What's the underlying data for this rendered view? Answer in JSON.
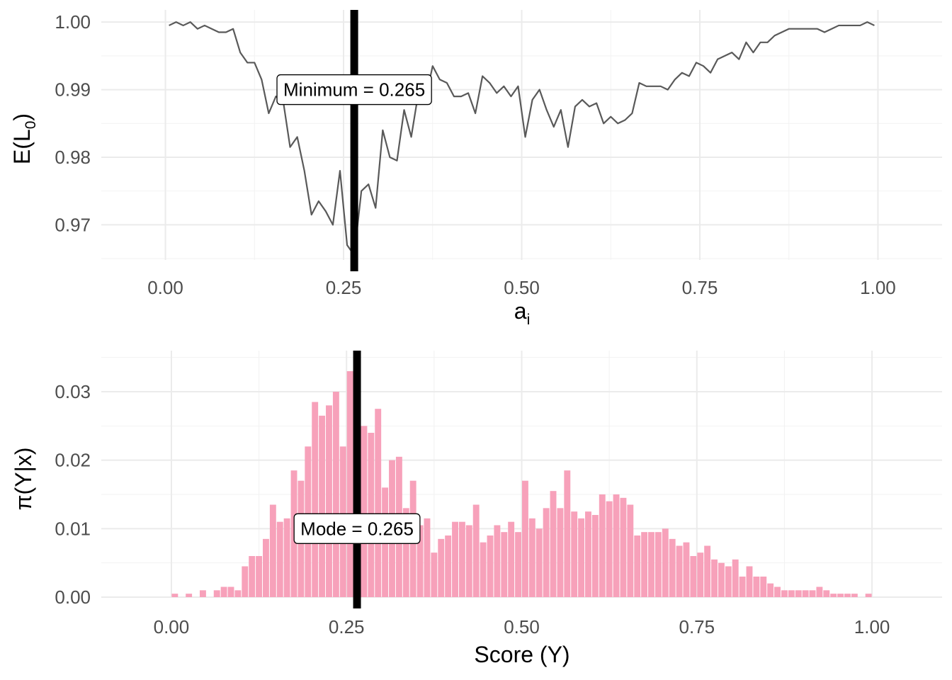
{
  "chart_data": [
    {
      "type": "line",
      "xlabel": {
        "base": "a",
        "sub": "i"
      },
      "ylabel": {
        "base": "E(L",
        "sub": "0",
        "close": ")"
      },
      "xlim": [
        -0.09,
        1.09
      ],
      "ylim": [
        0.9648,
        1.0018
      ],
      "x_ticks": [
        0.0,
        0.25,
        0.5,
        0.75,
        1.0
      ],
      "x_tick_labels": [
        "0.00",
        "0.25",
        "0.50",
        "0.75",
        "1.00"
      ],
      "y_ticks": [
        0.97,
        0.98,
        0.99,
        1.0
      ],
      "y_tick_labels": [
        "0.97",
        "0.98",
        "0.99",
        "1.00"
      ],
      "grid": true,
      "line_color": "#595959",
      "vline": {
        "x": 0.265,
        "color": "#000000"
      },
      "annotation": {
        "text": "Minimum = 0.265",
        "x": 0.265,
        "y": 0.99
      },
      "series": [
        {
          "x": [
            0.005,
            0.015,
            0.025,
            0.035,
            0.045,
            0.055,
            0.065,
            0.075,
            0.085,
            0.095,
            0.105,
            0.115,
            0.125,
            0.135,
            0.145,
            0.155,
            0.165,
            0.175,
            0.185,
            0.195,
            0.205,
            0.215,
            0.225,
            0.235,
            0.245,
            0.255,
            0.265,
            0.275,
            0.285,
            0.295,
            0.305,
            0.315,
            0.325,
            0.335,
            0.345,
            0.355,
            0.365,
            0.375,
            0.385,
            0.395,
            0.405,
            0.415,
            0.425,
            0.435,
            0.445,
            0.455,
            0.465,
            0.475,
            0.485,
            0.495,
            0.505,
            0.515,
            0.525,
            0.535,
            0.545,
            0.555,
            0.565,
            0.575,
            0.585,
            0.595,
            0.605,
            0.615,
            0.625,
            0.635,
            0.645,
            0.655,
            0.665,
            0.675,
            0.685,
            0.695,
            0.705,
            0.715,
            0.725,
            0.735,
            0.745,
            0.755,
            0.765,
            0.775,
            0.785,
            0.795,
            0.805,
            0.815,
            0.825,
            0.835,
            0.845,
            0.855,
            0.865,
            0.875,
            0.885,
            0.895,
            0.905,
            0.915,
            0.925,
            0.935,
            0.945,
            0.955,
            0.965,
            0.975,
            0.985,
            0.995
          ],
          "y": [
            0.9995,
            1.0,
            0.9995,
            1.0,
            0.999,
            0.9995,
            0.999,
            0.9985,
            0.9985,
            0.999,
            0.9955,
            0.994,
            0.994,
            0.9915,
            0.9865,
            0.989,
            0.9885,
            0.9815,
            0.983,
            0.978,
            0.9715,
            0.9735,
            0.972,
            0.97,
            0.978,
            0.967,
            0.9655,
            0.975,
            0.976,
            0.9725,
            0.984,
            0.98,
            0.9795,
            0.987,
            0.983,
            0.9895,
            0.9885,
            0.9935,
            0.9915,
            0.991,
            0.989,
            0.989,
            0.9895,
            0.9865,
            0.992,
            0.991,
            0.9895,
            0.9905,
            0.989,
            0.9905,
            0.983,
            0.9885,
            0.99,
            0.987,
            0.9845,
            0.987,
            0.9815,
            0.9875,
            0.9885,
            0.9875,
            0.988,
            0.985,
            0.986,
            0.985,
            0.9855,
            0.9865,
            0.991,
            0.9905,
            0.9905,
            0.9905,
            0.99,
            0.9915,
            0.9925,
            0.992,
            0.994,
            0.9935,
            0.9925,
            0.9945,
            0.995,
            0.9955,
            0.9945,
            0.997,
            0.9955,
            0.997,
            0.997,
            0.998,
            0.9985,
            0.999,
            0.999,
            0.999,
            0.999,
            0.999,
            0.9985,
            0.999,
            0.9995,
            0.9995,
            0.9995,
            0.9995,
            1.0,
            0.9995
          ]
        }
      ]
    },
    {
      "type": "bar",
      "xlabel": "Score (Y)",
      "ylabel": "π(Y|x)",
      "xlim": [
        -0.1,
        1.1
      ],
      "ylim": [
        0.0,
        0.036
      ],
      "x_ticks": [
        0.0,
        0.25,
        0.5,
        0.75,
        1.0
      ],
      "x_tick_labels": [
        "0.00",
        "0.25",
        "0.50",
        "0.75",
        "1.00"
      ],
      "y_ticks": [
        0.0,
        0.01,
        0.02,
        0.03
      ],
      "y_tick_labels": [
        "0.00",
        "0.01",
        "0.02",
        "0.03"
      ],
      "grid": true,
      "bar_color": "#F7A1BA",
      "bin_width": 0.01,
      "vline": {
        "x": 0.265,
        "color": "#000000"
      },
      "annotation": {
        "text": "Mode = 0.265",
        "x": 0.265,
        "y": 0.01
      },
      "series": [
        {
          "x": [
            0.005,
            0.015,
            0.025,
            0.035,
            0.045,
            0.055,
            0.065,
            0.075,
            0.085,
            0.095,
            0.105,
            0.115,
            0.125,
            0.135,
            0.145,
            0.155,
            0.165,
            0.175,
            0.185,
            0.195,
            0.205,
            0.215,
            0.225,
            0.235,
            0.245,
            0.255,
            0.265,
            0.275,
            0.285,
            0.295,
            0.305,
            0.315,
            0.325,
            0.335,
            0.345,
            0.355,
            0.365,
            0.375,
            0.385,
            0.395,
            0.405,
            0.415,
            0.425,
            0.435,
            0.445,
            0.455,
            0.465,
            0.475,
            0.485,
            0.495,
            0.505,
            0.515,
            0.525,
            0.535,
            0.545,
            0.555,
            0.565,
            0.575,
            0.585,
            0.595,
            0.605,
            0.615,
            0.625,
            0.635,
            0.645,
            0.655,
            0.665,
            0.675,
            0.685,
            0.695,
            0.705,
            0.715,
            0.725,
            0.735,
            0.745,
            0.755,
            0.765,
            0.775,
            0.785,
            0.795,
            0.805,
            0.815,
            0.825,
            0.835,
            0.845,
            0.855,
            0.865,
            0.875,
            0.885,
            0.895,
            0.905,
            0.915,
            0.925,
            0.935,
            0.945,
            0.955,
            0.965,
            0.975,
            0.985,
            0.995
          ],
          "y": [
            0.0005,
            0.0,
            0.0005,
            0.0,
            0.001,
            0.0,
            0.001,
            0.0015,
            0.0015,
            0.001,
            0.0045,
            0.006,
            0.006,
            0.0085,
            0.0135,
            0.011,
            0.0115,
            0.0185,
            0.017,
            0.022,
            0.0285,
            0.0265,
            0.028,
            0.03,
            0.022,
            0.033,
            0.0345,
            0.025,
            0.024,
            0.0275,
            0.016,
            0.02,
            0.0205,
            0.013,
            0.017,
            0.0105,
            0.0115,
            0.0065,
            0.0085,
            0.009,
            0.011,
            0.011,
            0.0105,
            0.0135,
            0.008,
            0.009,
            0.0105,
            0.0095,
            0.011,
            0.0095,
            0.017,
            0.0115,
            0.01,
            0.013,
            0.0155,
            0.013,
            0.0185,
            0.0125,
            0.0115,
            0.0125,
            0.012,
            0.015,
            0.014,
            0.015,
            0.0145,
            0.0135,
            0.009,
            0.0095,
            0.0095,
            0.0095,
            0.01,
            0.0085,
            0.0075,
            0.008,
            0.006,
            0.0065,
            0.0075,
            0.0055,
            0.005,
            0.0045,
            0.0055,
            0.003,
            0.0045,
            0.003,
            0.003,
            0.002,
            0.0015,
            0.001,
            0.001,
            0.001,
            0.001,
            0.001,
            0.0015,
            0.001,
            0.0005,
            0.0005,
            0.0005,
            0.0005,
            0.0,
            0.0005
          ]
        }
      ]
    }
  ]
}
